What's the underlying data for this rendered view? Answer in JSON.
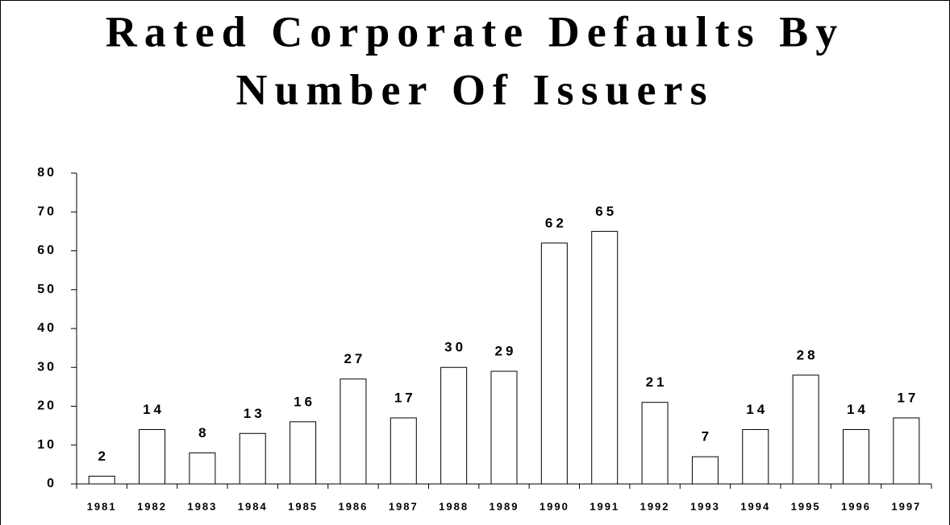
{
  "chart_data": {
    "type": "bar",
    "title": [
      "Rated Corporate Defaults By",
      "Number Of Issuers"
    ],
    "categories": [
      "1981",
      "1982",
      "1983",
      "1984",
      "1985",
      "1986",
      "1987",
      "1988",
      "1989",
      "1990",
      "1991",
      "1992",
      "1993",
      "1994",
      "1995",
      "1996",
      "1997"
    ],
    "values": [
      2,
      14,
      8,
      13,
      16,
      27,
      17,
      30,
      29,
      62,
      65,
      21,
      7,
      14,
      28,
      14,
      17
    ],
    "color": "#ffffff",
    "ylim": [
      0,
      80
    ],
    "yticks": [
      0,
      10,
      20,
      30,
      40,
      50,
      60,
      70,
      80
    ],
    "grid": false
  }
}
